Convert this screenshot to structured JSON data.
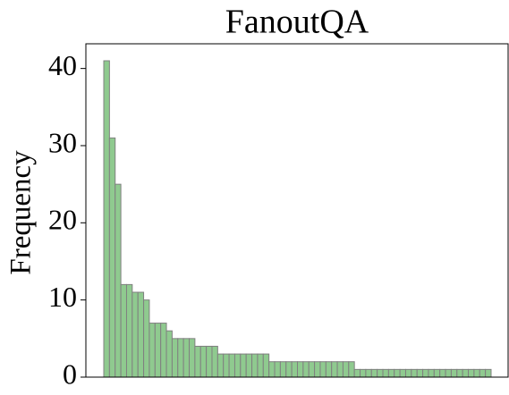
{
  "chart_data": {
    "type": "bar",
    "title": "FanoutQA",
    "ylabel": "Frequency",
    "categories": [
      null,
      null,
      null,
      null,
      null,
      null,
      null,
      null,
      null,
      null,
      null,
      null,
      null,
      null,
      null,
      null,
      null,
      null,
      null,
      null,
      null,
      null,
      null,
      null,
      null,
      null,
      null,
      null,
      null,
      null,
      null,
      null,
      null,
      null,
      null,
      null,
      null,
      null,
      null,
      null,
      null,
      null,
      null,
      null,
      null,
      null,
      null,
      null,
      null,
      null,
      null,
      null,
      null,
      null,
      null,
      null,
      null,
      null,
      null,
      null,
      null,
      null,
      null,
      null,
      null,
      null,
      null,
      null
    ],
    "values": [
      41,
      31,
      25,
      12,
      12,
      11,
      11,
      10,
      7,
      7,
      7,
      6,
      5,
      5,
      5,
      5,
      4,
      4,
      4,
      4,
      3,
      3,
      3,
      3,
      3,
      3,
      3,
      3,
      3,
      2,
      2,
      2,
      2,
      2,
      2,
      2,
      2,
      2,
      2,
      2,
      2,
      2,
      2,
      2,
      1,
      1,
      1,
      1,
      1,
      1,
      1,
      1,
      1,
      1,
      1,
      1,
      1,
      1,
      1,
      1,
      1,
      1,
      1,
      1,
      1,
      1,
      1,
      1
    ],
    "color": "#8fca8f",
    "edgecolor": "#808080",
    "ylim": [
      0,
      43.2
    ],
    "yticks": [
      0,
      10,
      20,
      30,
      40
    ]
  }
}
